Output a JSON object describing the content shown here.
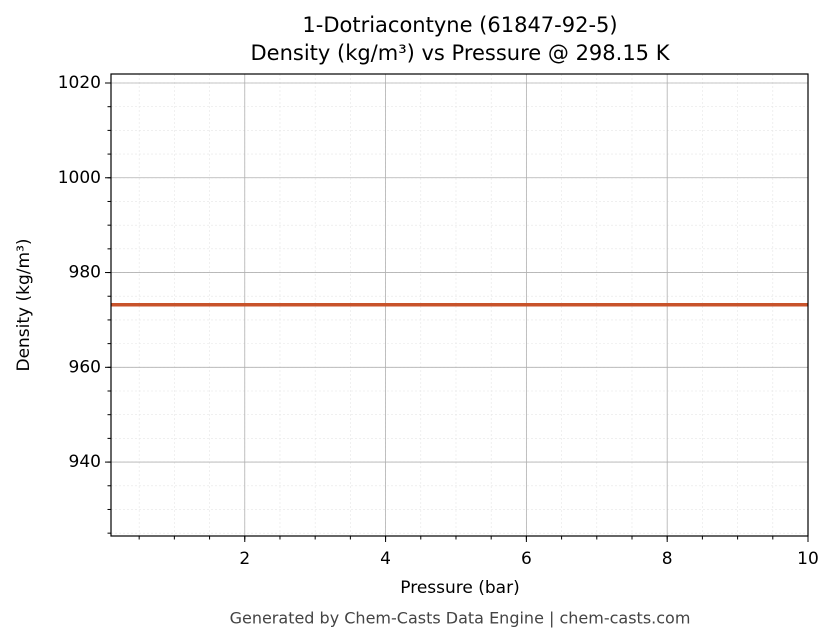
{
  "chart_data": {
    "type": "line",
    "title": "1-Dotriacontyne (61847-92-5)",
    "subtitle": "Density (kg/m³) vs Pressure @ 298.15 K",
    "x_label": "Pressure (bar)",
    "y_label": "Density (kg/m³)",
    "x": [
      0.1,
      10
    ],
    "series": [
      {
        "name": "Density",
        "color": "#c8532b",
        "values": [
          973.2,
          973.2
        ]
      }
    ],
    "xlim": [
      0.1,
      10
    ],
    "xticks": [
      2,
      4,
      6,
      8,
      10
    ],
    "ylim": [
      924.4,
      1021.9
    ],
    "yticks": [
      940,
      960,
      980,
      1000,
      1020
    ],
    "grid": true,
    "minor_grid": true,
    "minor_divisions": 4
  },
  "footer": "Generated by Chem-Casts Data Engine | chem-casts.com"
}
